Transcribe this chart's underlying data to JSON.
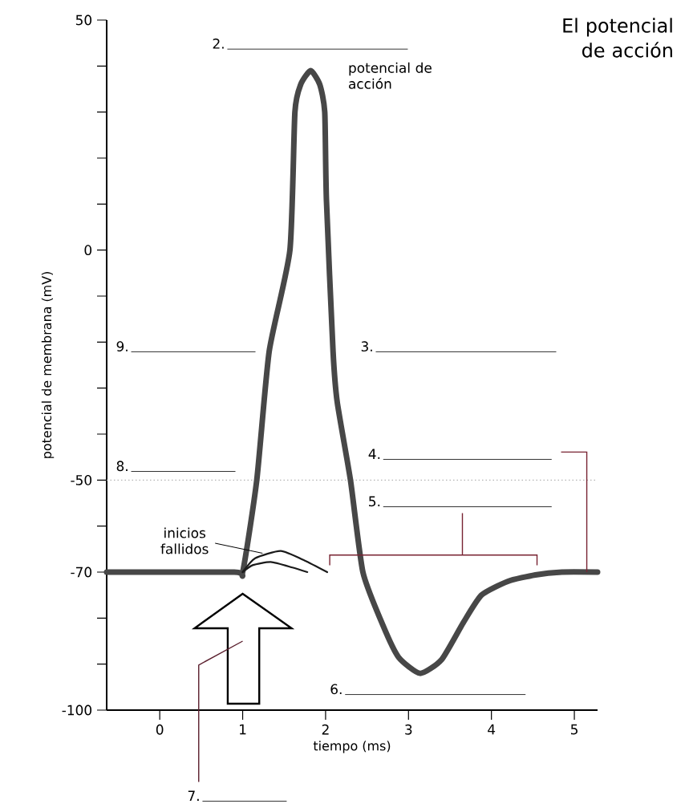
{
  "chart_data": {
    "type": "line",
    "title": "El potencial de acción",
    "xlabel": "tiempo (ms)",
    "ylabel": "potencial de membrana (mV)",
    "xlim": [
      -0.64,
      5.28
    ],
    "ylim": [
      -100,
      50
    ],
    "xticks": [
      0,
      1,
      2,
      3,
      4,
      5
    ],
    "yticks": [
      -100,
      {
        "value": -90,
        "label": null
      },
      {
        "value": -80,
        "label": null
      },
      -70,
      {
        "value": -60,
        "label": null
      },
      -50,
      {
        "value": -40,
        "label": null
      },
      {
        "value": -30,
        "label": null
      },
      {
        "value": -20,
        "label": null
      },
      {
        "value": -10,
        "label": null
      },
      0,
      {
        "value": 10,
        "label": null
      },
      {
        "value": 20,
        "label": null
      },
      {
        "value": 30,
        "label": null
      },
      {
        "value": 40,
        "label": null
      },
      50
    ],
    "marker": "none",
    "line_style": "solid",
    "series": [
      {
        "color": "#474747",
        "x": [
          -0.64,
          0.9,
          1.0,
          1.17,
          1.32,
          1.57,
          1.63,
          1.7,
          1.82,
          1.93,
          1.99,
          2.01,
          2.09,
          2.14,
          2.3,
          2.45,
          2.69,
          2.88,
          3.14,
          3.4,
          3.66,
          3.88,
          4.2,
          4.53,
          4.85,
          5.28
        ],
        "values": [
          -70,
          -70,
          -70,
          -50,
          -22,
          0,
          30,
          36,
          39,
          36,
          30,
          11,
          -22,
          -33,
          -50,
          -70,
          -81.5,
          -88.5,
          -92,
          -89,
          -81,
          -75,
          -72,
          -70.6,
          -70,
          -70
        ]
      },
      {
        "color": "#1a1a1a",
        "x": [
          1.0,
          1.15,
          1.46,
          1.75,
          2.02
        ],
        "values": [
          -70,
          -67,
          -65.4,
          -67.5,
          -70
        ]
      },
      {
        "color": "#1a1a1a",
        "x": [
          1.0,
          1.12,
          1.34,
          1.6,
          1.78
        ],
        "values": [
          -70,
          -68.5,
          -67.8,
          -69,
          -70
        ]
      }
    ],
    "ref_lines": [
      {
        "axis": "y",
        "value": -50,
        "color": "#b4b4b4",
        "line_style": "dotted"
      }
    ],
    "annotations": [
      "2.",
      "potencial de acción",
      "3.",
      "4.",
      "5.",
      "6.",
      "7.",
      "8.",
      "9.",
      {
        "text": "inicios fallidos",
        "x": 1.24,
        "y": -65.9
      }
    ]
  }
}
